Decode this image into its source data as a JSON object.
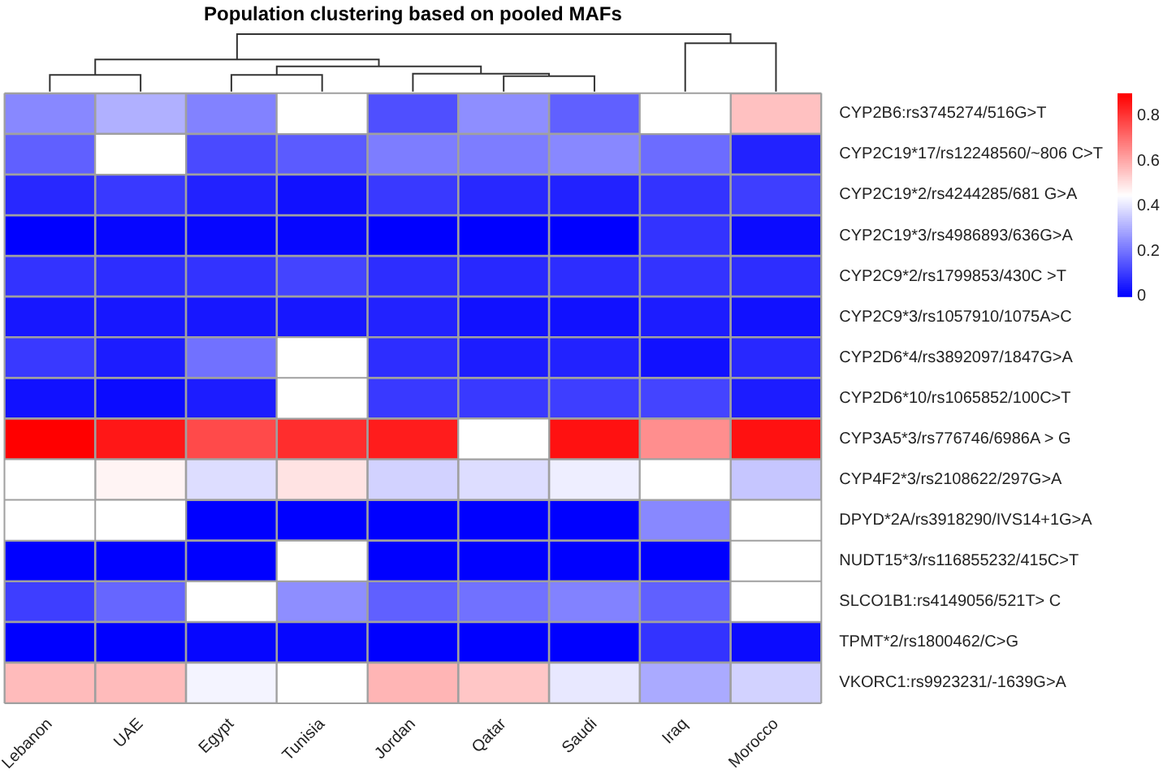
{
  "chart_data": {
    "type": "heatmap",
    "title": "Population clustering based on pooled MAFs",
    "categories": [
      "Lebanon",
      "UAE",
      "Egypt",
      "Tunisia",
      "Jordan",
      "Qatar",
      "Saudi",
      "Iraq",
      "Morocco"
    ],
    "y_categories": [
      "CYP2B6:rs3745274/516G>T",
      "CYP2C19*17/rs12248560/~806 C>T",
      "CYP2C19*2/rs4244285/681 G>A",
      "CYP2C19*3/rs4986893/636G>A",
      "CYP2C9*2/rs1799853/430C >T",
      "CYP2C9*3/rs1057910/1075A>C",
      "CYP2D6*4/rs3892097/1847G>A",
      "CYP2D6*10/rs1065852/100C>T",
      "CYP3A5*3/rs776746/6986A > G",
      "CYP4F2*3/rs2108622/297G>A",
      "DPYD*2A/rs3918290/IVS14+1G>A",
      "NUDT15*3/rs116855232/415C>T",
      "SLCO1B1:rs4149056/521T> C",
      "TPMT*2/rs1800462/C>G",
      "VKORC1:rs9923231/-1639G>A"
    ],
    "cells": [
      [
        0.24,
        0.31,
        0.23,
        null,
        0.14,
        0.25,
        0.17,
        null,
        0.56
      ],
      [
        0.17,
        null,
        0.13,
        0.16,
        0.22,
        0.22,
        0.24,
        0.19,
        0.06
      ],
      [
        0.07,
        0.1,
        0.06,
        0.03,
        0.1,
        0.07,
        0.06,
        0.09,
        0.11
      ],
      [
        0.0,
        0.01,
        0.01,
        0.01,
        0.0,
        0.0,
        0.0,
        0.09,
        0.02
      ],
      [
        0.09,
        0.08,
        0.09,
        0.12,
        0.08,
        0.07,
        0.08,
        0.09,
        0.08
      ],
      [
        0.04,
        0.04,
        0.04,
        0.04,
        0.06,
        0.03,
        0.03,
        0.05,
        0.03
      ],
      [
        0.1,
        0.05,
        0.2,
        null,
        0.08,
        0.05,
        0.06,
        0.03,
        0.07
      ],
      [
        0.03,
        0.02,
        0.05,
        null,
        0.1,
        0.1,
        0.11,
        0.12,
        0.05
      ],
      [
        0.9,
        0.86,
        0.77,
        0.82,
        0.85,
        null,
        0.87,
        0.65,
        0.87
      ],
      [
        null,
        0.47,
        0.39,
        0.5,
        0.37,
        0.39,
        0.42,
        null,
        0.35
      ],
      [
        null,
        null,
        0.0,
        0.0,
        0.0,
        0.0,
        0.0,
        0.24,
        null
      ],
      [
        0.0,
        0.0,
        0.0,
        null,
        0.0,
        0.0,
        0.0,
        0.0,
        null
      ],
      [
        0.11,
        0.18,
        null,
        0.25,
        0.17,
        0.2,
        0.23,
        0.17,
        null
      ],
      [
        0.0,
        0.0,
        0.01,
        0.01,
        0.0,
        0.0,
        0.0,
        0.09,
        0.02
      ],
      [
        0.57,
        0.57,
        0.43,
        null,
        0.58,
        0.55,
        0.41,
        0.3,
        0.37
      ]
    ],
    "clim": [
      0,
      0.9
    ],
    "cticks": [
      0,
      0.2,
      0.4,
      0.6,
      0.8
    ]
  }
}
